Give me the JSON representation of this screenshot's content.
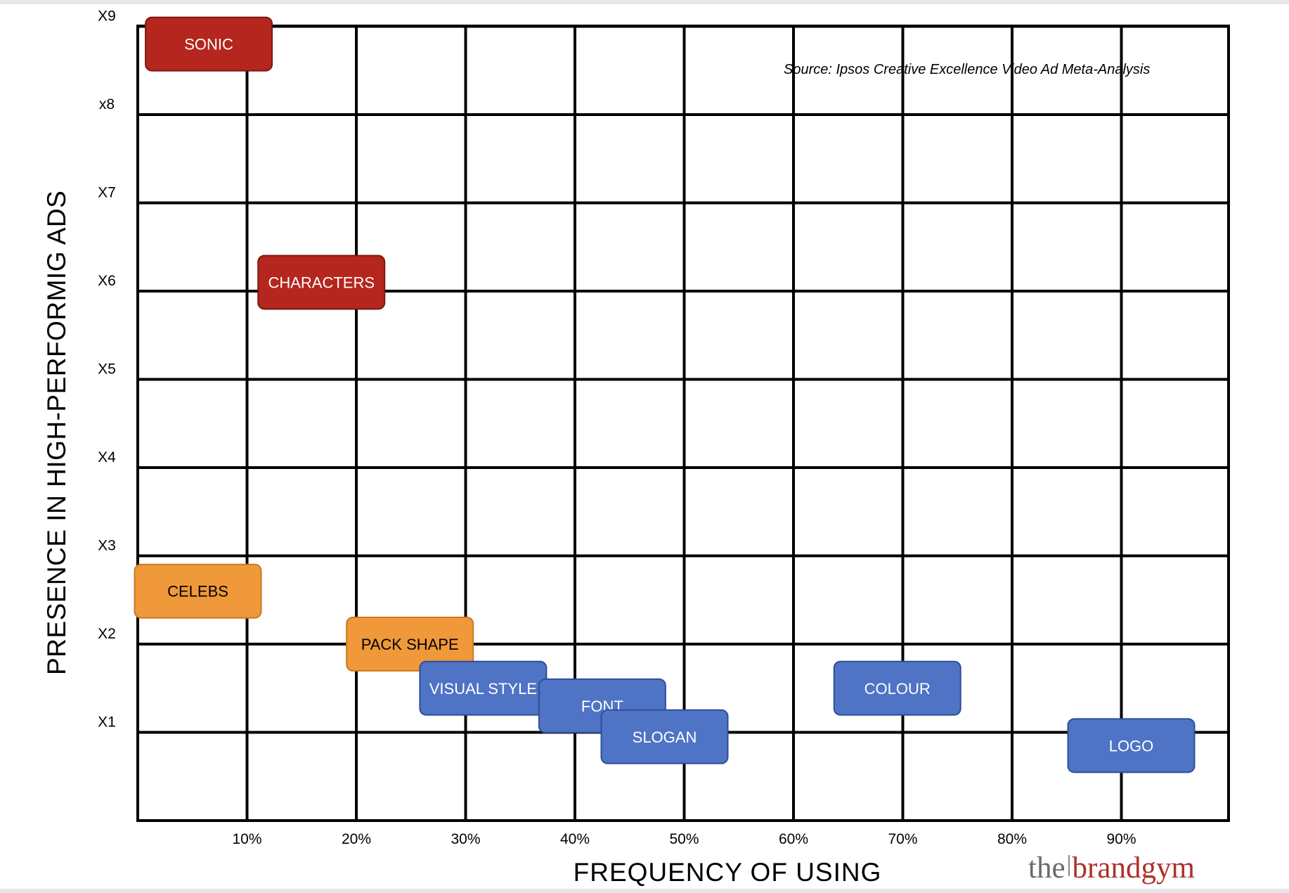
{
  "chart_data": {
    "type": "scatter",
    "title": "",
    "source": "Source: Ipsos Creative Excellence Video Ad Meta-Analysis",
    "xlabel": "FREQUENCY OF USING",
    "ylabel": "PRESENCE IN HIGH-PERFORMIG ADS",
    "x_unit": "%",
    "xlim": [
      0,
      100
    ],
    "ylim": [
      0,
      9
    ],
    "x_ticks": [
      "10%",
      "20%",
      "30%",
      "40%",
      "50%",
      "60%",
      "70%",
      "80%",
      "90%"
    ],
    "y_ticks": [
      "X1",
      "X2",
      "X3",
      "X4",
      "X5",
      "X6",
      "X7",
      "x8",
      "X9"
    ],
    "grid": true,
    "colors": {
      "red": "#b5261e",
      "orange": "#f0993a",
      "blue": "#4f73c5"
    },
    "points": [
      {
        "label": "SONIC",
        "x": 6.5,
        "y": 8.8,
        "color": "red"
      },
      {
        "label": "CHARACTERS",
        "x": 16.8,
        "y": 6.1,
        "color": "red"
      },
      {
        "label": "CELEBS",
        "x": 5.5,
        "y": 2.6,
        "color": "orange"
      },
      {
        "label": "PACK SHAPE",
        "x": 24.9,
        "y": 2.0,
        "color": "orange"
      },
      {
        "label": "VISUAL STYLE",
        "x": 31.6,
        "y": 1.5,
        "color": "blue"
      },
      {
        "label": "FONT",
        "x": 42.5,
        "y": 1.3,
        "color": "blue"
      },
      {
        "label": "SLOGAN",
        "x": 48.2,
        "y": 0.95,
        "color": "blue"
      },
      {
        "label": "COLOUR",
        "x": 69.5,
        "y": 1.5,
        "color": "blue"
      },
      {
        "label": "LOGO",
        "x": 90.9,
        "y": 0.85,
        "color": "blue"
      }
    ]
  },
  "brand": {
    "the": "the",
    "gym": "brandgym"
  }
}
